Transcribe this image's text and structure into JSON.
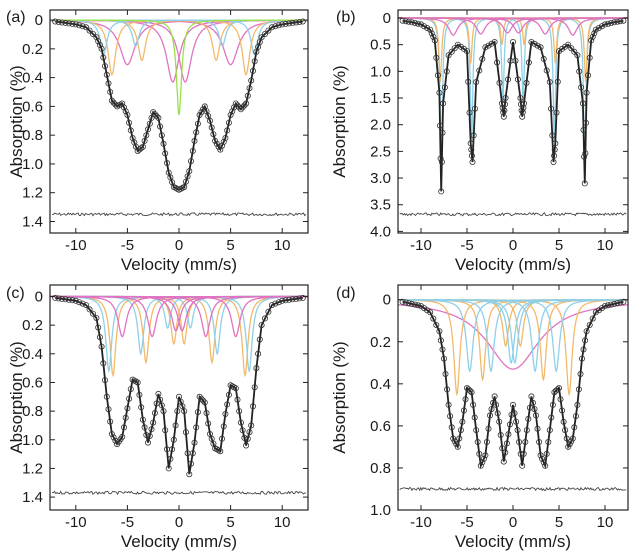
{
  "chart_data": [
    {
      "type": "line",
      "panel": "(a)",
      "xlabel": "Velocity (mm/s)",
      "ylabel": "Absorption (%)",
      "xlim": [
        -12.5,
        12.5
      ],
      "ylim": [
        1.48,
        -0.07
      ],
      "y_inverted": true,
      "xticks": [
        -10,
        -5,
        0,
        5,
        10
      ],
      "xtick_labels": [
        "-10",
        "-5",
        "0",
        "5",
        "10"
      ],
      "yticks": [
        0,
        0.2,
        0.4,
        0.6,
        0.8,
        1.0,
        1.2,
        1.4
      ],
      "ytick_labels": [
        "0",
        "0.2",
        "0.4",
        "0.6",
        "0.8",
        "1.0",
        "1.2",
        "1.4"
      ],
      "residual_baseline": 1.35,
      "data_points": {
        "x": [
          -12,
          -11,
          -10,
          -9,
          -8,
          -7.5,
          -7,
          -6.5,
          -6,
          -5.5,
          -5,
          -4.5,
          -4,
          -3.5,
          -3,
          -2.5,
          -2,
          -1.5,
          -1,
          -0.5,
          0,
          0.5,
          1,
          1.5,
          2,
          2.5,
          3,
          3.5,
          4,
          4.5,
          5,
          5.5,
          6,
          6.5,
          7,
          7.5,
          8,
          9,
          10,
          11,
          12
        ],
        "y": [
          0.01,
          0.02,
          0.03,
          0.05,
          0.12,
          0.2,
          0.38,
          0.56,
          0.6,
          0.58,
          0.66,
          0.82,
          0.91,
          0.88,
          0.76,
          0.64,
          0.68,
          0.86,
          1.06,
          1.16,
          1.18,
          1.16,
          1.05,
          0.84,
          0.66,
          0.6,
          0.7,
          0.84,
          0.9,
          0.82,
          0.66,
          0.58,
          0.62,
          0.58,
          0.42,
          0.22,
          0.12,
          0.05,
          0.03,
          0.02,
          0.01
        ]
      },
      "series": [
        {
          "name": "",
          "color": "#e073c2",
          "centers": [
            -5,
            -0.6,
            0.6,
            5
          ],
          "depths": [
            0.31,
            0.43,
            0.43,
            0.31
          ],
          "widths": [
            1.8,
            1.5,
            1.5,
            1.8
          ]
        },
        {
          "name": "",
          "color": "#f3b96a",
          "centers": [
            -6.5,
            -3.6,
            3.6,
            6.5
          ],
          "depths": [
            0.38,
            0.28,
            0.28,
            0.38
          ],
          "widths": [
            0.9,
            0.9,
            0.9,
            0.9
          ]
        },
        {
          "name": "",
          "color": "#8fd0e8",
          "centers": [
            -7.3,
            -4.2,
            4.2,
            7.3
          ],
          "depths": [
            0.24,
            0.18,
            0.18,
            0.24
          ],
          "widths": [
            0.8,
            0.8,
            0.8,
            0.8
          ]
        },
        {
          "name": "",
          "color": "#9be04a",
          "centers": [
            0
          ],
          "depths": [
            0.66
          ],
          "widths": [
            0.6
          ]
        }
      ]
    },
    {
      "type": "line",
      "panel": "(b)",
      "xlabel": "Velocity (mm/s)",
      "ylabel": "Absorption (%)",
      "xlim": [
        -12.5,
        12.5
      ],
      "ylim": [
        4.03,
        -0.15
      ],
      "y_inverted": true,
      "xticks": [
        -10,
        -5,
        0,
        5,
        10
      ],
      "xtick_labels": [
        "-10",
        "-5",
        "0",
        "5",
        "10"
      ],
      "yticks": [
        0,
        0.5,
        1.0,
        1.5,
        2.0,
        2.5,
        3.0,
        3.5,
        4.0
      ],
      "ytick_labels": [
        "0",
        "0.5",
        "1.0",
        "1.5",
        "2.0",
        "2.5",
        "3.0",
        "3.5",
        "4.0"
      ],
      "residual_baseline": 3.68,
      "data_points": {
        "x": [
          -12,
          -11,
          -10,
          -9,
          -8.5,
          -8,
          -7.8,
          -7.6,
          -7,
          -6,
          -5,
          -4.6,
          -4.4,
          -4,
          -3,
          -2,
          -1.2,
          -1,
          -0.8,
          0,
          0.8,
          1,
          1.2,
          2,
          3,
          4,
          4.4,
          4.6,
          5,
          6,
          7,
          7.6,
          7.8,
          8,
          8.5,
          9,
          10,
          11,
          12
        ],
        "y": [
          0.05,
          0.08,
          0.12,
          0.22,
          0.42,
          1.4,
          3.25,
          1.6,
          0.7,
          0.5,
          0.62,
          2.35,
          2.7,
          1.2,
          0.55,
          0.45,
          1.6,
          1.85,
          1.5,
          0.45,
          1.5,
          1.85,
          1.6,
          0.45,
          0.55,
          1.2,
          2.7,
          2.35,
          0.62,
          0.5,
          0.7,
          1.6,
          3.1,
          1.4,
          0.42,
          0.22,
          0.12,
          0.08,
          0.05
        ]
      },
      "series": [
        {
          "name": "",
          "color": "#8fd0e8",
          "centers": [
            -7.8,
            -4.5,
            -1.1,
            1.1,
            4.5,
            7.8
          ],
          "depths": [
            2.7,
            2.3,
            1.55,
            1.55,
            2.3,
            2.7
          ],
          "widths": [
            0.32,
            0.32,
            0.32,
            0.32,
            0.32,
            0.32
          ]
        },
        {
          "name": "",
          "color": "#f3b96a",
          "centers": [
            -7.9,
            -4.6,
            -1.2,
            1.2,
            4.6,
            7.9
          ],
          "depths": [
            1.2,
            0.85,
            0.5,
            0.5,
            0.85,
            1.2
          ],
          "widths": [
            0.35,
            0.35,
            0.35,
            0.35,
            0.35,
            0.35
          ]
        },
        {
          "name": "",
          "color": "#e073c2",
          "centers": [
            -6.5,
            -3.5,
            -0.6,
            0.6,
            3.5,
            6.5
          ],
          "depths": [
            0.32,
            0.3,
            0.28,
            0.28,
            0.3,
            0.32
          ],
          "widths": [
            1.2,
            1.2,
            1.2,
            1.2,
            1.2,
            1.2
          ]
        }
      ]
    },
    {
      "type": "line",
      "panel": "(c)",
      "xlabel": "Velocity (mm/s)",
      "ylabel": "Absorption (%)",
      "xlim": [
        -12.5,
        12.5
      ],
      "ylim": [
        1.49,
        -0.08
      ],
      "y_inverted": true,
      "xticks": [
        -10,
        -5,
        0,
        5,
        10
      ],
      "xtick_labels": [
        "-10",
        "-5",
        "0",
        "5",
        "10"
      ],
      "yticks": [
        0,
        0.2,
        0.4,
        0.6,
        0.8,
        1.0,
        1.2,
        1.4
      ],
      "ytick_labels": [
        "0",
        "0.2",
        "0.4",
        "0.6",
        "0.8",
        "1.0",
        "1.2",
        "1.4"
      ],
      "residual_baseline": 1.37,
      "data_points": {
        "x": [
          -12,
          -11,
          -10,
          -9,
          -8,
          -7.5,
          -7,
          -6.5,
          -6,
          -5.5,
          -5,
          -4.5,
          -4,
          -3.5,
          -3,
          -2.5,
          -2,
          -1.5,
          -1,
          -0.5,
          0,
          0.5,
          1,
          1.5,
          2,
          2.5,
          3,
          3.5,
          4,
          4.5,
          5,
          5.5,
          6,
          6.5,
          7,
          7.5,
          8,
          9,
          10,
          11,
          12
        ],
        "y": [
          0.01,
          0.02,
          0.03,
          0.06,
          0.15,
          0.35,
          0.7,
          0.96,
          1.03,
          0.98,
          0.78,
          0.58,
          0.6,
          0.86,
          1.02,
          0.88,
          0.68,
          0.8,
          1.2,
          1.0,
          0.7,
          0.8,
          1.24,
          1.02,
          0.7,
          0.74,
          0.96,
          1.06,
          1.08,
          0.82,
          0.62,
          0.64,
          0.88,
          1.04,
          0.9,
          0.5,
          0.2,
          0.06,
          0.03,
          0.02,
          0.01
        ]
      },
      "series": [
        {
          "name": "",
          "color": "#f3b96a",
          "centers": [
            -6.4,
            -3.2,
            -0.5,
            0.5,
            3.2,
            6.4
          ],
          "depths": [
            0.55,
            0.46,
            0.33,
            0.33,
            0.46,
            0.55
          ],
          "widths": [
            0.7,
            0.7,
            0.7,
            0.7,
            0.7,
            0.7
          ]
        },
        {
          "name": "",
          "color": "#8fd0e8",
          "centers": [
            -6.8,
            -3.7,
            -1.1,
            1.1,
            3.7,
            6.8
          ],
          "depths": [
            0.52,
            0.4,
            0.22,
            0.22,
            0.4,
            0.52
          ],
          "widths": [
            0.7,
            0.7,
            0.7,
            0.7,
            0.7,
            0.7
          ]
        },
        {
          "name": "",
          "color": "#e073c2",
          "centers": [
            -5.5,
            -2.6,
            -0.3,
            0.3,
            2.6,
            5.5
          ],
          "depths": [
            0.28,
            0.28,
            0.24,
            0.24,
            0.28,
            0.28
          ],
          "widths": [
            1.0,
            1.0,
            1.0,
            1.0,
            1.0,
            1.0
          ]
        }
      ]
    },
    {
      "type": "line",
      "panel": "(d)",
      "xlabel": "Velocity (mm/s)",
      "ylabel": "Absorption (%)",
      "xlim": [
        -12.5,
        12.5
      ],
      "ylim": [
        1.0,
        -0.07
      ],
      "y_inverted": true,
      "xticks": [
        -10,
        -5,
        0,
        5,
        10
      ],
      "xtick_labels": [
        "-10",
        "-5",
        "0",
        "5",
        "10"
      ],
      "yticks": [
        0,
        0.2,
        0.4,
        0.6,
        0.8,
        1.0
      ],
      "ytick_labels": [
        "0",
        "0.2",
        "0.4",
        "0.6",
        "0.8",
        "1.0"
      ],
      "residual_baseline": 0.9,
      "data_points": {
        "x": [
          -12,
          -11,
          -10,
          -9,
          -8,
          -7.5,
          -7,
          -6.5,
          -6,
          -5.5,
          -5,
          -4.5,
          -4,
          -3.5,
          -3,
          -2.5,
          -2,
          -1.5,
          -1,
          -0.5,
          0,
          0.5,
          1,
          1.5,
          2,
          2.5,
          3,
          3.5,
          4,
          4.5,
          5,
          5.5,
          6,
          6.5,
          7,
          7.5,
          8,
          9,
          10,
          11,
          12
        ],
        "y": [
          0.01,
          0.02,
          0.03,
          0.06,
          0.15,
          0.28,
          0.5,
          0.66,
          0.7,
          0.58,
          0.42,
          0.44,
          0.62,
          0.79,
          0.74,
          0.55,
          0.46,
          0.58,
          0.77,
          0.64,
          0.5,
          0.62,
          0.79,
          0.62,
          0.46,
          0.55,
          0.74,
          0.79,
          0.62,
          0.44,
          0.42,
          0.58,
          0.7,
          0.66,
          0.5,
          0.28,
          0.15,
          0.06,
          0.03,
          0.02,
          0.01
        ]
      },
      "series": [
        {
          "name": "",
          "color": "#e073c2",
          "centers": [
            0
          ],
          "depths": [
            0.33
          ],
          "widths": [
            7.0
          ]
        },
        {
          "name": "",
          "color": "#f3b96a",
          "centers": [
            -6.1,
            -3.3,
            -0.8,
            0.8,
            3.3,
            6.1
          ],
          "depths": [
            0.45,
            0.38,
            0.22,
            0.22,
            0.38,
            0.45
          ],
          "widths": [
            0.8,
            0.8,
            0.8,
            0.8,
            0.8,
            0.8
          ]
        },
        {
          "name": "",
          "color": "#8fd0e8",
          "centers": [
            -4.7,
            -2.4,
            -0.2,
            0.2,
            2.4,
            4.7
          ],
          "depths": [
            0.34,
            0.34,
            0.3,
            0.3,
            0.34,
            0.34
          ],
          "widths": [
            0.9,
            0.9,
            0.9,
            0.9,
            0.9,
            0.9
          ]
        }
      ]
    }
  ]
}
